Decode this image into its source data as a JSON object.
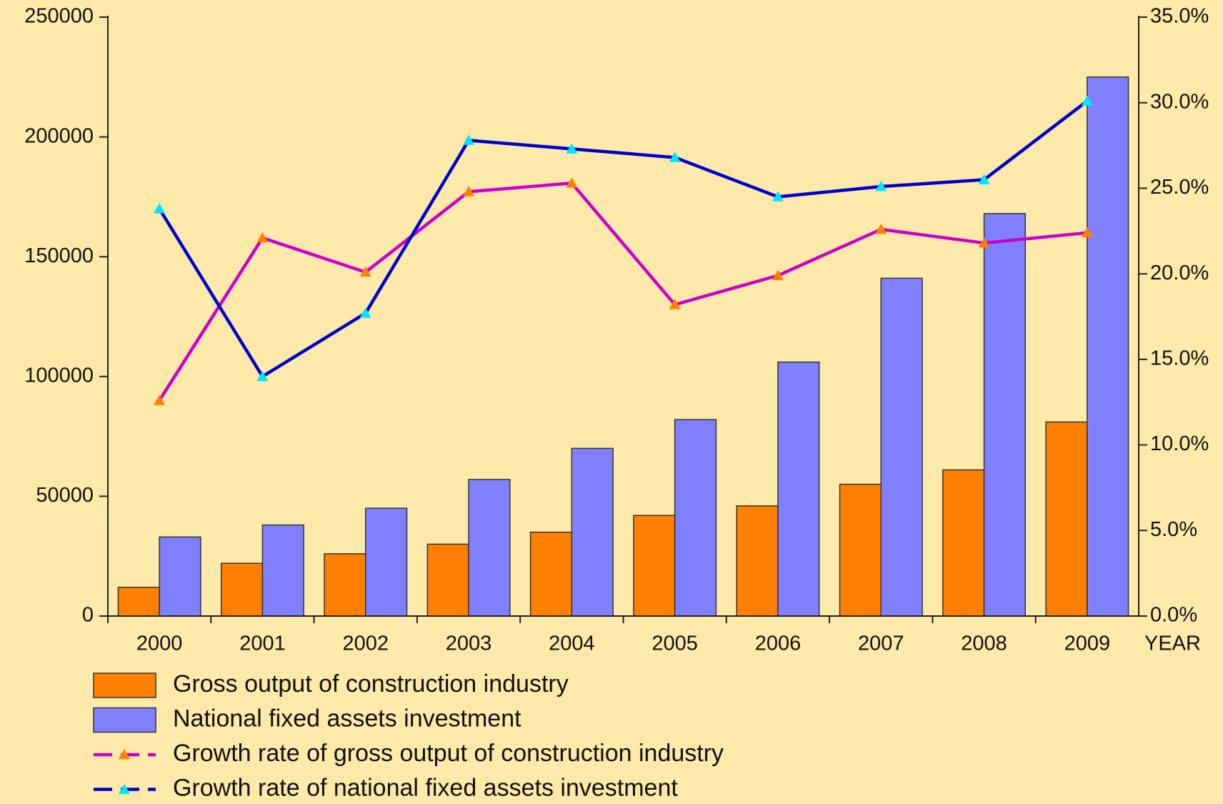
{
  "chart_data": {
    "type": "bar",
    "x_label": "YEAR",
    "categories": [
      "2000",
      "2001",
      "2002",
      "2003",
      "2004",
      "2005",
      "2006",
      "2007",
      "2008",
      "2009"
    ],
    "series": [
      {
        "name": "Gross output of construction industry",
        "type": "bar",
        "color": "#ff8000",
        "values": [
          12000,
          22000,
          26000,
          30000,
          35000,
          42000,
          46000,
          55000,
          61000,
          81000
        ]
      },
      {
        "name": "National fixed assets investment",
        "type": "bar",
        "color": "#8080ff",
        "values": [
          33000,
          38000,
          45000,
          57000,
          70000,
          82000,
          106000,
          141000,
          168000,
          225000
        ]
      },
      {
        "name": "Growth rate of gross output of construction industry",
        "type": "line",
        "axis": "y2",
        "color": "#cc00cc",
        "marker_color": "#ff8000",
        "values": [
          12.6,
          22.1,
          20.1,
          24.8,
          25.3,
          18.2,
          19.9,
          22.6,
          21.8,
          22.4
        ]
      },
      {
        "name": "Growth rate of national fixed assets investment",
        "type": "line",
        "axis": "y2",
        "color": "#0000cc",
        "marker_color": "#00e5ff",
        "values": [
          23.8,
          14.0,
          17.7,
          27.8,
          27.3,
          26.8,
          24.5,
          25.1,
          25.5,
          30.1
        ]
      }
    ],
    "ylim": [
      0,
      250000
    ],
    "yticks": [
      0,
      50000,
      100000,
      150000,
      200000,
      250000
    ],
    "y2lim": [
      0,
      35
    ],
    "y2ticks": [
      {
        "value": 0,
        "label": "0.0%"
      },
      {
        "value": 5,
        "label": "5.0%"
      },
      {
        "value": 10,
        "label": "10.0%"
      },
      {
        "value": 15,
        "label": "15.0%"
      },
      {
        "value": 20,
        "label": "20.0%"
      },
      {
        "value": 25,
        "label": "25.0%"
      },
      {
        "value": 30,
        "label": "30.0%"
      },
      {
        "value": 35,
        "label": "35.0%"
      }
    ],
    "grid": false,
    "legend": "bottom"
  }
}
